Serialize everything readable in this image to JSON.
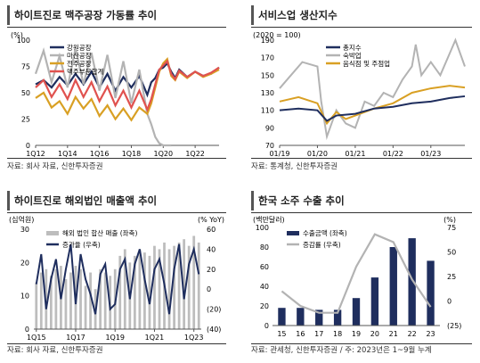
{
  "panels": [
    {
      "title": "하이트진로 맥주공장 가동률 추이",
      "source": "자료: 회사 자료, 신한투자증권",
      "chart_data": {
        "type": "line",
        "y_unit": "(%)",
        "ylim": [
          0,
          100
        ],
        "y_ticks": [
          "0",
          "25",
          "50",
          "75",
          "100"
        ],
        "x_tick_labels": [
          "1Q12",
          "1Q14",
          "1Q16",
          "1Q18",
          "1Q20",
          "1Q22"
        ],
        "x_range": [
          2012.0,
          2023.5
        ],
        "legend": "top-left",
        "series": [
          {
            "name": "강원공장",
            "color": "#1f2e5e",
            "x": [
              2012.0,
              2012.5,
              2013.0,
              2013.5,
              2014.0,
              2014.5,
              2015.0,
              2015.5,
              2016.0,
              2016.5,
              2017.0,
              2017.5,
              2018.0,
              2018.5,
              2019.0,
              2019.25,
              2019.5,
              2019.75,
              2020.0,
              2020.25,
              2020.5,
              2020.75,
              2021.0,
              2021.5,
              2022.0,
              2022.5,
              2023.0,
              2023.5
            ],
            "y": [
              58,
              62,
              55,
              65,
              57,
              68,
              58,
              70,
              55,
              68,
              52,
              65,
              55,
              66,
              48,
              60,
              64,
              72,
              74,
              78,
              70,
              64,
              72,
              65,
              70,
              66,
              68,
              74
            ]
          },
          {
            "name": "마산공장",
            "color": "#b3b3b3",
            "x": [
              2012.0,
              2012.5,
              2013.0,
              2013.5,
              2014.0,
              2014.5,
              2015.0,
              2015.5,
              2016.0,
              2016.5,
              2017.0,
              2017.5,
              2018.0,
              2018.5,
              2019.0,
              2019.25,
              2019.5,
              2019.75,
              2020.0,
              2020.25,
              2020.5
            ],
            "y": [
              68,
              90,
              60,
              85,
              55,
              92,
              58,
              88,
              52,
              86,
              45,
              80,
              40,
              72,
              30,
              20,
              8,
              2,
              0,
              0,
              0
            ]
          },
          {
            "name": "전주공장",
            "color": "#d9a024",
            "x": [
              2012.0,
              2012.5,
              2013.0,
              2013.5,
              2014.0,
              2014.5,
              2015.0,
              2015.5,
              2016.0,
              2016.5,
              2017.0,
              2017.5,
              2018.0,
              2018.5,
              2019.0,
              2019.25,
              2019.5,
              2019.75,
              2020.0,
              2020.25,
              2020.5,
              2020.75,
              2021.0,
              2021.5,
              2022.0,
              2022.5,
              2023.0,
              2023.5
            ],
            "y": [
              45,
              50,
              36,
              42,
              30,
              46,
              35,
              44,
              28,
              38,
              25,
              35,
              24,
              36,
              30,
              40,
              55,
              70,
              78,
              82,
              66,
              62,
              70,
              64,
              70,
              65,
              68,
              72
            ]
          },
          {
            "name": "맥주부문합계",
            "color": "#e0524f",
            "x": [
              2012.0,
              2012.5,
              2013.0,
              2013.5,
              2014.0,
              2014.5,
              2015.0,
              2015.5,
              2016.0,
              2016.5,
              2017.0,
              2017.5,
              2018.0,
              2018.5,
              2019.0,
              2019.25,
              2019.5,
              2019.75,
              2020.0,
              2020.25,
              2020.5,
              2020.75,
              2021.0,
              2021.5,
              2022.0,
              2022.5,
              2023.0,
              2023.5
            ],
            "y": [
              55,
              62,
              46,
              58,
              44,
              62,
              46,
              60,
              42,
              56,
              38,
              52,
              36,
              52,
              34,
              44,
              58,
              72,
              76,
              80,
              68,
              63,
              71,
              65,
              70,
              66,
              69,
              74
            ]
          }
        ]
      }
    },
    {
      "title": "서비스업 생산지수",
      "source": "자료: 통계청, 신한투자증권",
      "chart_data": {
        "type": "line",
        "y_unit": "(2020 = 100)",
        "ylim": [
          70,
          190
        ],
        "y_ticks": [
          "70",
          "90",
          "110",
          "130",
          "150",
          "170",
          "190"
        ],
        "x_tick_labels": [
          "01/19",
          "01/20",
          "01/21",
          "01/22",
          "01/23"
        ],
        "x_range": [
          2019.0,
          2023.9
        ],
        "legend": "top-left",
        "series": [
          {
            "name": "총지수",
            "color": "#1f2e5e",
            "x": [
              2019.0,
              2019.5,
              2020.0,
              2020.25,
              2020.5,
              2021.0,
              2021.5,
              2022.0,
              2022.5,
              2023.0,
              2023.5,
              2023.9
            ],
            "y": [
              110,
              112,
              110,
              98,
              104,
              106,
              112,
              114,
              118,
              120,
              124,
              126
            ]
          },
          {
            "name": "숙박업",
            "color": "#b3b3b3",
            "x": [
              2019.0,
              2019.3,
              2019.6,
              2020.0,
              2020.1,
              2020.25,
              2020.5,
              2020.75,
              2021.0,
              2021.25,
              2021.5,
              2021.75,
              2022.0,
              2022.25,
              2022.5,
              2022.6,
              2022.75,
              2023.0,
              2023.25,
              2023.5,
              2023.65,
              2023.9
            ],
            "y": [
              135,
              150,
              165,
              160,
              120,
              80,
              110,
              95,
              90,
              120,
              115,
              130,
              125,
              145,
              160,
              185,
              150,
              165,
              150,
              175,
              190,
              160
            ]
          },
          {
            "name": "음식점 및 주점업",
            "color": "#d9a024",
            "x": [
              2019.0,
              2019.5,
              2020.0,
              2020.25,
              2020.5,
              2020.75,
              2021.0,
              2021.5,
              2022.0,
              2022.5,
              2023.0,
              2023.5,
              2023.9
            ],
            "y": [
              120,
              125,
              118,
              95,
              108,
              100,
              104,
              112,
              118,
              130,
              135,
              138,
              136
            ]
          }
        ]
      }
    },
    {
      "title": "하이트진로 해외법인 매출액 추이",
      "source": "자료: 회사 자료, 신한투자증권",
      "chart_data": {
        "type": "bar",
        "y_unit_left": "(십억원)",
        "y_unit_right": "(% YoY)",
        "ylim_left": [
          0,
          30
        ],
        "ylim_right": [
          -40,
          60
        ],
        "y_ticks_left": [
          "0",
          "10",
          "20",
          "30"
        ],
        "y_ticks_right": [
          "(40)",
          "(20)",
          "0",
          "20",
          "40",
          "60"
        ],
        "x_tick_labels": [
          "1Q15",
          "1Q17",
          "1Q19",
          "1Q21",
          "1Q23"
        ],
        "legend": "top-left",
        "bar_series": {
          "name": "해외 법인 합산 매출 (좌축)",
          "color": "#bdbdbd",
          "values": [
            14,
            17,
            18,
            16,
            18,
            19,
            15,
            17,
            19,
            18,
            13,
            17,
            12,
            18,
            17,
            16,
            18,
            22,
            24,
            20,
            22,
            24,
            23,
            22,
            25,
            24,
            26,
            24,
            25,
            26,
            27,
            25,
            28,
            26
          ]
        },
        "line_series": {
          "name": "증가율 (우축)",
          "color": "#1f2e5e",
          "values": [
            5,
            35,
            -20,
            10,
            30,
            -10,
            20,
            45,
            -15,
            35,
            10,
            -5,
            -25,
            15,
            25,
            -20,
            -15,
            20,
            30,
            -10,
            25,
            40,
            10,
            -15,
            20,
            30,
            5,
            -25,
            20,
            45,
            -10,
            25,
            40,
            15
          ]
        }
      }
    },
    {
      "title": "한국 소주 수출 추이",
      "source": "자료: 관세청, 신한투자증권 / 주: 2023년은 1~9월 누계",
      "chart_data": {
        "type": "bar",
        "y_unit_left": "(백만달러)",
        "y_unit_right": "(%)",
        "ylim_left": [
          0,
          100
        ],
        "ylim_right": [
          -25,
          75
        ],
        "y_ticks_left": [
          "0",
          "20",
          "40",
          "60",
          "80",
          "100"
        ],
        "y_ticks_right": [
          "(25)",
          "0",
          "25",
          "50",
          "75"
        ],
        "categories": [
          "15",
          "16",
          "17",
          "18",
          "19",
          "20",
          "21",
          "22",
          "23"
        ],
        "legend": "top-left",
        "bar_series": {
          "name": "수출금액 (좌축)",
          "color": "#1f2e5e",
          "values": [
            18,
            18,
            16,
            16,
            28,
            49,
            80,
            89,
            66
          ]
        },
        "line_series": {
          "name": "증감률 (우축)",
          "color": "#b3b3b3",
          "values": [
            10,
            -5,
            -12,
            -12,
            35,
            68,
            60,
            22,
            -6
          ]
        }
      }
    }
  ]
}
